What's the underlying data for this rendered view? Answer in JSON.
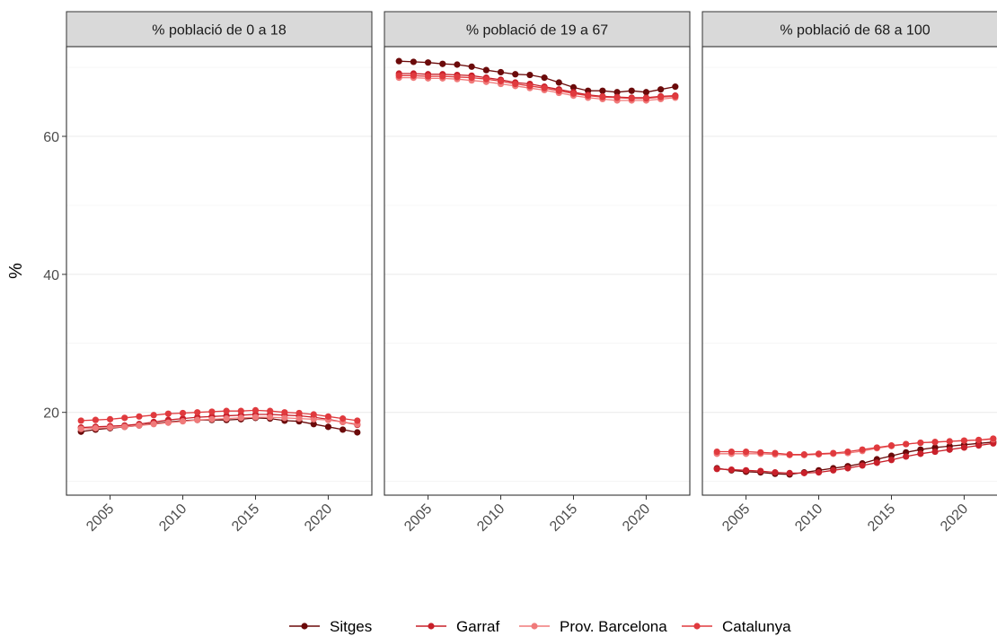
{
  "chart_data": {
    "type": "line",
    "ylabel": "%",
    "xlabel": "",
    "ylim": [
      8,
      73
    ],
    "xlim": [
      2002,
      2023
    ],
    "y_ticks": [
      20,
      40,
      60
    ],
    "x_ticks": [
      2005,
      2010,
      2015,
      2020
    ],
    "grid": true,
    "legend_position": "bottom",
    "x": [
      2003,
      2004,
      2005,
      2006,
      2007,
      2008,
      2009,
      2010,
      2011,
      2012,
      2013,
      2014,
      2015,
      2016,
      2017,
      2018,
      2019,
      2020,
      2021,
      2022
    ],
    "series_meta": [
      {
        "name": "Sitges",
        "color": "#6b0a0a"
      },
      {
        "name": "Garraf",
        "color": "#c8202a"
      },
      {
        "name": "Prov. Barcelona",
        "color": "#f07a7a"
      },
      {
        "name": "Catalunya",
        "color": "#e03a3e"
      }
    ],
    "panels": [
      {
        "title": "% població de 0 a 18",
        "series": [
          {
            "name": "Sitges",
            "values": [
              17.2,
              17.5,
              17.7,
              17.9,
              18.1,
              18.4,
              18.6,
              18.8,
              18.9,
              18.9,
              18.9,
              19.0,
              19.2,
              19.1,
              18.8,
              18.7,
              18.3,
              17.9,
              17.5,
              17.1
            ]
          },
          {
            "name": "Garraf",
            "values": [
              17.8,
              17.9,
              18.0,
              18.1,
              18.3,
              18.6,
              18.9,
              19.1,
              19.3,
              19.4,
              19.5,
              19.6,
              19.7,
              19.7,
              19.6,
              19.5,
              19.3,
              19.0,
              18.6,
              18.2
            ]
          },
          {
            "name": "Prov. Barcelona",
            "values": [
              17.6,
              17.7,
              17.8,
              17.9,
              18.1,
              18.3,
              18.5,
              18.7,
              18.9,
              19.0,
              19.1,
              19.2,
              19.3,
              19.3,
              19.2,
              19.1,
              19.0,
              18.9,
              18.6,
              18.3
            ]
          },
          {
            "name": "Catalunya",
            "values": [
              18.8,
              18.9,
              19.0,
              19.2,
              19.4,
              19.6,
              19.8,
              19.9,
              20.0,
              20.1,
              20.2,
              20.2,
              20.3,
              20.2,
              20.0,
              19.9,
              19.7,
              19.4,
              19.1,
              18.8
            ]
          }
        ]
      },
      {
        "title": "% població de 19 a 67",
        "series": [
          {
            "name": "Sitges",
            "values": [
              70.9,
              70.8,
              70.7,
              70.5,
              70.4,
              70.1,
              69.6,
              69.3,
              69.0,
              68.9,
              68.5,
              67.8,
              67.1,
              66.6,
              66.6,
              66.4,
              66.6,
              66.4,
              66.8,
              67.2
            ]
          },
          {
            "name": "Garraf",
            "values": [
              69.1,
              69.1,
              69.0,
              69.0,
              68.9,
              68.8,
              68.5,
              68.2,
              67.8,
              67.6,
              67.2,
              66.8,
              66.4,
              66.0,
              65.8,
              65.7,
              65.6,
              65.6,
              65.8,
              65.9
            ]
          },
          {
            "name": "Prov. Barcelona",
            "values": [
              68.5,
              68.5,
              68.4,
              68.4,
              68.3,
              68.1,
              67.9,
              67.6,
              67.3,
              67.0,
              66.7,
              66.3,
              65.9,
              65.6,
              65.4,
              65.2,
              65.2,
              65.2,
              65.4,
              65.6
            ]
          },
          {
            "name": "Catalunya",
            "values": [
              68.8,
              68.8,
              68.7,
              68.7,
              68.6,
              68.5,
              68.3,
              68.0,
              67.6,
              67.3,
              67.0,
              66.6,
              66.2,
              65.9,
              65.7,
              65.6,
              65.5,
              65.5,
              65.7,
              65.8
            ]
          }
        ]
      },
      {
        "title": "% població de 68 a 100",
        "series": [
          {
            "name": "Sitges",
            "values": [
              11.9,
              11.6,
              11.4,
              11.3,
              11.1,
              11.0,
              11.3,
              11.6,
              11.9,
              12.2,
              12.6,
              13.2,
              13.7,
              14.2,
              14.6,
              14.9,
              15.1,
              15.3,
              15.5,
              15.7
            ]
          },
          {
            "name": "Garraf",
            "values": [
              11.8,
              11.7,
              11.6,
              11.5,
              11.3,
              11.2,
              11.2,
              11.3,
              11.6,
              11.9,
              12.3,
              12.7,
              13.1,
              13.6,
              14.0,
              14.3,
              14.6,
              14.9,
              15.2,
              15.5
            ]
          },
          {
            "name": "Prov. Barcelona",
            "values": [
              14.0,
              14.0,
              14.0,
              14.0,
              13.9,
              13.8,
              13.8,
              13.9,
              14.0,
              14.1,
              14.4,
              14.8,
              15.1,
              15.4,
              15.6,
              15.7,
              15.8,
              15.9,
              16.0,
              16.1
            ]
          },
          {
            "name": "Catalunya",
            "values": [
              14.3,
              14.3,
              14.3,
              14.2,
              14.1,
              13.9,
              13.9,
              14.0,
              14.1,
              14.3,
              14.6,
              14.9,
              15.2,
              15.4,
              15.6,
              15.7,
              15.8,
              15.9,
              16.0,
              16.2
            ]
          }
        ]
      }
    ]
  }
}
